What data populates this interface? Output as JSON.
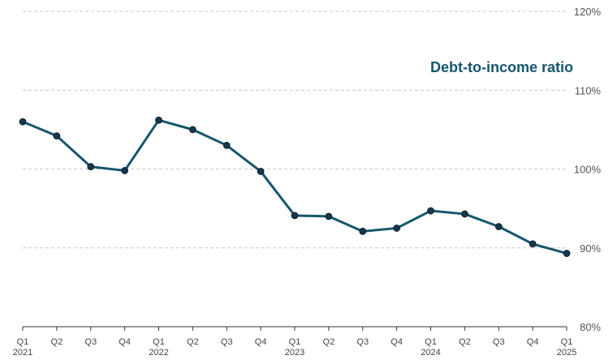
{
  "chart_data": {
    "type": "line",
    "title": "",
    "xlabel": "",
    "ylabel": "",
    "ylim": [
      80,
      120
    ],
    "yticks": [
      80,
      90,
      100,
      110,
      120
    ],
    "ytick_labels": [
      "80%",
      "90%",
      "100%",
      "110%",
      "120%"
    ],
    "grid": true,
    "categories": [
      "Q1 2021",
      "Q2 2021",
      "Q3 2021",
      "Q4 2021",
      "Q1 2022",
      "Q2 2022",
      "Q3 2022",
      "Q4 2022",
      "Q1 2023",
      "Q2 2023",
      "Q3 2023",
      "Q4 2023",
      "Q1 2024",
      "Q2 2024",
      "Q3 2024",
      "Q4 2024",
      "Q1 2025"
    ],
    "x_tick_quarters": [
      "Q1",
      "Q2",
      "Q3",
      "Q4",
      "Q1",
      "Q2",
      "Q3",
      "Q4",
      "Q1",
      "Q2",
      "Q3",
      "Q4",
      "Q1",
      "Q2",
      "Q3",
      "Q4",
      "Q1"
    ],
    "x_tick_years": [
      "2021",
      "",
      "",
      "",
      "2022",
      "",
      "",
      "",
      "2023",
      "",
      "",
      "",
      "2024",
      "",
      "",
      "",
      "2025"
    ],
    "series": [
      {
        "name": "Debt-to-income ratio",
        "color": "#16566e",
        "marker_color": "#16384a",
        "values": [
          106.0,
          104.2,
          100.3,
          99.8,
          106.2,
          105.0,
          103.0,
          99.7,
          94.1,
          94.0,
          92.1,
          92.5,
          94.7,
          94.3,
          92.7,
          90.5,
          89.3
        ]
      }
    ]
  }
}
